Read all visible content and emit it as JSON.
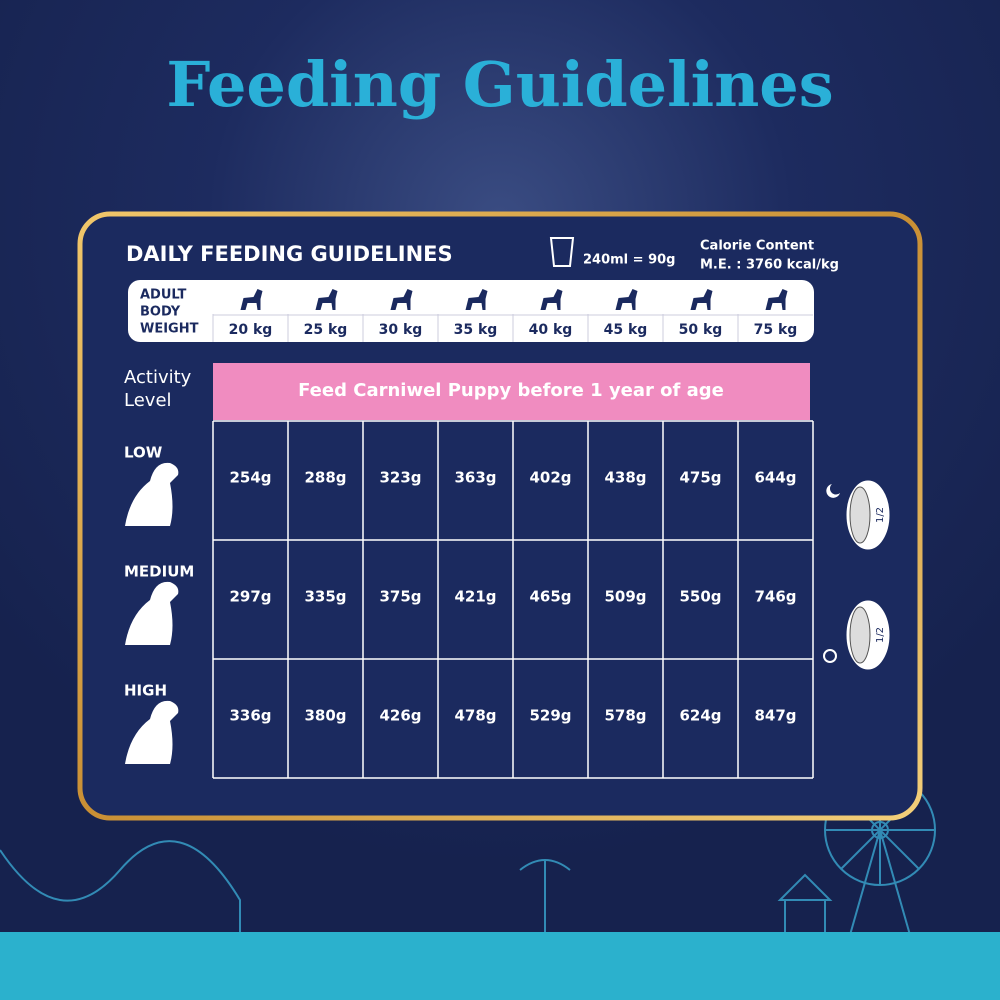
{
  "title": "Feeding Guidelines",
  "card": {
    "heading": "DAILY FEEDING GUIDELINES",
    "measure": "240ml = 90g",
    "calorie_title": "Calorie Content",
    "calorie_value": "M.E. : 3760 kcal/kg",
    "weight_label": [
      "ADULT",
      "BODY",
      "WEIGHT"
    ],
    "weights": [
      "20 kg",
      "25 kg",
      "30 kg",
      "35 kg",
      "40 kg",
      "45 kg",
      "50 kg",
      "75 kg"
    ],
    "activity_label": [
      "Activity",
      "Level"
    ],
    "banner": "Feed Carniwel Puppy before 1 year of age",
    "rows": [
      {
        "level": "LOW",
        "values": [
          "254g",
          "288g",
          "323g",
          "363g",
          "402g",
          "438g",
          "475g",
          "644g"
        ]
      },
      {
        "level": "MEDIUM",
        "values": [
          "297g",
          "335g",
          "375g",
          "421g",
          "465g",
          "509g",
          "550g",
          "746g"
        ]
      },
      {
        "level": "HIGH",
        "values": [
          "336g",
          "380g",
          "426g",
          "478g",
          "529g",
          "578g",
          "624g",
          "847g"
        ]
      }
    ],
    "bowls": [
      "1/2",
      "1/2"
    ]
  }
}
